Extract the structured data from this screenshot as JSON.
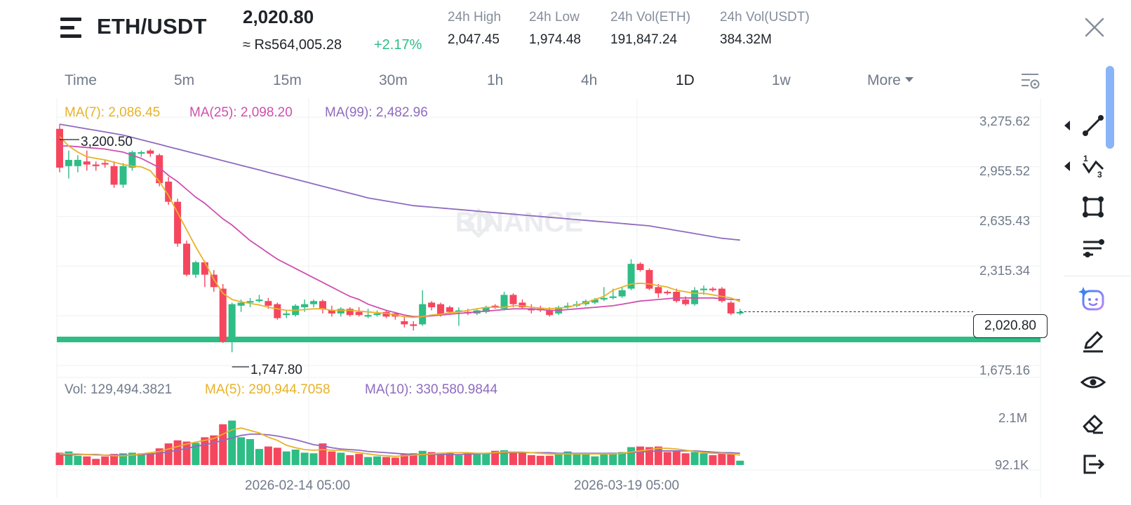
{
  "header": {
    "pair": "ETH/USDT",
    "price": "2,020.80",
    "fiat_price": "≈ Rs564,005.28",
    "change": "+2.17%",
    "stats": [
      {
        "label": "24h High",
        "value": "2,047.45"
      },
      {
        "label": "24h Low",
        "value": "1,974.48"
      },
      {
        "label": "24h Vol(ETH)",
        "value": "191,847.24"
      },
      {
        "label": "24h Vol(USDT)",
        "value": "384.32M"
      }
    ]
  },
  "intervals": [
    {
      "label": "Time",
      "active": false
    },
    {
      "label": "5m",
      "active": false
    },
    {
      "label": "15m",
      "active": false
    },
    {
      "label": "30m",
      "active": false
    },
    {
      "label": "1h",
      "active": false
    },
    {
      "label": "4h",
      "active": false
    },
    {
      "label": "1D",
      "active": true
    },
    {
      "label": "1w",
      "active": false
    },
    {
      "label": "More",
      "active": false
    }
  ],
  "ma_legend": {
    "ma7": "MA(7): 2,086.45",
    "ma25": "MA(25): 2,098.20",
    "ma99": "MA(99): 2,482.96"
  },
  "vol_legend": {
    "vol": "Vol: 129,494.3821",
    "ma5": "MA(5): 290,944.7058",
    "ma10": "MA(10): 330,580.9844"
  },
  "price_axis": [
    "3,275.62",
    "2,955.52",
    "2,635.43",
    "2,315.34",
    "1,675.16"
  ],
  "volume_axis": [
    "2.1M",
    "92.1K"
  ],
  "last_price": "2,020.80",
  "high_marker": "3,200.50",
  "low_marker": "1,747.80",
  "watermark": "BINANCE",
  "date_labels": [
    "2026-02-14 05:00",
    "2026-03-19 05:00"
  ],
  "colors": {
    "up": "#2ebd85",
    "down": "#f6465d",
    "ma7": "#e8b228",
    "ma25": "#d04fae",
    "ma99": "#8e6bbf",
    "text_muted": "#707a8a"
  },
  "tools": [
    "trend-line",
    "fib-retracement",
    "rectangle",
    "parallel-lines",
    "ai-assistant",
    "brush",
    "visibility",
    "eraser",
    "exit"
  ],
  "chart_data": {
    "type": "candlestick",
    "price_range": [
      1675.16,
      3275.62
    ],
    "volume_range": [
      92100,
      2100000
    ],
    "candles": [
      {
        "o": 3200,
        "h": 3230,
        "c": 2950,
        "l": 2920
      },
      {
        "o": 2960,
        "h": 3060,
        "c": 3000,
        "l": 2880
      },
      {
        "o": 2960,
        "h": 3030,
        "c": 3000,
        "l": 2920
      },
      {
        "o": 2990,
        "h": 3060,
        "c": 2970,
        "l": 2930
      },
      {
        "o": 2970,
        "h": 2990,
        "c": 2960,
        "l": 2930
      },
      {
        "o": 2980,
        "h": 3000,
        "c": 2970,
        "l": 2950
      },
      {
        "o": 2960,
        "h": 2990,
        "c": 2840,
        "l": 2820
      },
      {
        "o": 2840,
        "h": 2980,
        "c": 2960,
        "l": 2820
      },
      {
        "o": 2950,
        "h": 3060,
        "c": 3050,
        "l": 2930
      },
      {
        "o": 3040,
        "h": 3060,
        "c": 3050,
        "l": 3020
      },
      {
        "o": 3060,
        "h": 3070,
        "c": 3040,
        "l": 3020
      },
      {
        "o": 3030,
        "h": 3040,
        "c": 2850,
        "l": 2830
      },
      {
        "o": 2860,
        "h": 2890,
        "c": 2730,
        "l": 2710
      },
      {
        "o": 2730,
        "h": 2750,
        "c": 2460,
        "l": 2440
      },
      {
        "o": 2460,
        "h": 2480,
        "c": 2260,
        "l": 2250
      },
      {
        "o": 2260,
        "h": 2350,
        "c": 2340,
        "l": 2240
      },
      {
        "o": 2340,
        "h": 2350,
        "c": 2260,
        "l": 2180
      },
      {
        "o": 2260,
        "h": 2290,
        "c": 2180,
        "l": 2150
      },
      {
        "o": 2170,
        "h": 2200,
        "c": 1830,
        "l": 1820
      },
      {
        "o": 1830,
        "h": 2080,
        "c": 2070,
        "l": 1760
      },
      {
        "o": 2060,
        "h": 2100,
        "c": 2080,
        "l": 2020
      },
      {
        "o": 2080,
        "h": 2110,
        "c": 2090,
        "l": 2050
      },
      {
        "o": 2090,
        "h": 2130,
        "c": 2100,
        "l": 2080
      },
      {
        "o": 2090,
        "h": 2110,
        "c": 2060,
        "l": 2040
      },
      {
        "o": 2070,
        "h": 2080,
        "c": 1980,
        "l": 1970
      },
      {
        "o": 2000,
        "h": 2030,
        "c": 2010,
        "l": 1980
      },
      {
        "o": 2000,
        "h": 2070,
        "c": 2060,
        "l": 1990
      },
      {
        "o": 2050,
        "h": 2100,
        "c": 2070,
        "l": 2020
      },
      {
        "o": 2070,
        "h": 2100,
        "c": 2090,
        "l": 2050
      },
      {
        "o": 2090,
        "h": 2100,
        "c": 2040,
        "l": 2010
      },
      {
        "o": 2030,
        "h": 2060,
        "c": 2010,
        "l": 1990
      },
      {
        "o": 2010,
        "h": 2050,
        "c": 2040,
        "l": 1990
      },
      {
        "o": 2040,
        "h": 2050,
        "c": 2000,
        "l": 1990
      },
      {
        "o": 2020,
        "h": 2050,
        "c": 2000,
        "l": 1990
      },
      {
        "o": 1990,
        "h": 2040,
        "c": 2000,
        "l": 1980
      },
      {
        "o": 2000,
        "h": 2030,
        "c": 2010,
        "l": 1990
      },
      {
        "o": 2020,
        "h": 2030,
        "c": 1990,
        "l": 1980
      },
      {
        "o": 2010,
        "h": 2020,
        "c": 1990,
        "l": 1970
      },
      {
        "o": 1960,
        "h": 1990,
        "c": 1940,
        "l": 1920
      },
      {
        "o": 1940,
        "h": 1960,
        "c": 1930,
        "l": 1900
      },
      {
        "o": 1940,
        "h": 2160,
        "c": 2070,
        "l": 1930
      },
      {
        "o": 2080,
        "h": 2090,
        "c": 2050,
        "l": 2030
      },
      {
        "o": 2070,
        "h": 2080,
        "c": 2000,
        "l": 1990
      },
      {
        "o": 2050,
        "h": 2060,
        "c": 2020,
        "l": 2010
      },
      {
        "o": 2020,
        "h": 2050,
        "c": 2030,
        "l": 1930
      },
      {
        "o": 2020,
        "h": 2040,
        "c": 2010,
        "l": 2000
      },
      {
        "o": 2010,
        "h": 2040,
        "c": 2030,
        "l": 2000
      },
      {
        "o": 2020,
        "h": 2060,
        "c": 2050,
        "l": 2010
      },
      {
        "o": 2060,
        "h": 2070,
        "c": 2050,
        "l": 2040
      },
      {
        "o": 2040,
        "h": 2150,
        "c": 2130,
        "l": 2030
      },
      {
        "o": 2130,
        "h": 2140,
        "c": 2070,
        "l": 2050
      },
      {
        "o": 2080,
        "h": 2100,
        "c": 2050,
        "l": 2040
      },
      {
        "o": 2040,
        "h": 2070,
        "c": 2030,
        "l": 2010
      },
      {
        "o": 2040,
        "h": 2060,
        "c": 2030,
        "l": 2020
      },
      {
        "o": 2030,
        "h": 2050,
        "c": 2000,
        "l": 1990
      },
      {
        "o": 2010,
        "h": 2060,
        "c": 2050,
        "l": 2000
      },
      {
        "o": 2050,
        "h": 2080,
        "c": 2060,
        "l": 2040
      },
      {
        "o": 2060,
        "h": 2090,
        "c": 2070,
        "l": 2050
      },
      {
        "o": 2070,
        "h": 2100,
        "c": 2090,
        "l": 2060
      },
      {
        "o": 2080,
        "h": 2110,
        "c": 2100,
        "l": 2070
      },
      {
        "o": 2100,
        "h": 2180,
        "c": 2110,
        "l": 2090
      },
      {
        "o": 2110,
        "h": 2170,
        "c": 2120,
        "l": 2100
      },
      {
        "o": 2120,
        "h": 2180,
        "c": 2160,
        "l": 2110
      },
      {
        "o": 2170,
        "h": 2360,
        "c": 2330,
        "l": 2160
      },
      {
        "o": 2330,
        "h": 2340,
        "c": 2290,
        "l": 2280
      },
      {
        "o": 2290,
        "h": 2300,
        "c": 2170,
        "l": 2160
      },
      {
        "o": 2180,
        "h": 2200,
        "c": 2140,
        "l": 2110
      },
      {
        "o": 2150,
        "h": 2160,
        "c": 2140,
        "l": 2130
      },
      {
        "o": 2150,
        "h": 2170,
        "c": 2090,
        "l": 2080
      },
      {
        "o": 2100,
        "h": 2120,
        "c": 2070,
        "l": 2060
      },
      {
        "o": 2070,
        "h": 2180,
        "c": 2160,
        "l": 2060
      },
      {
        "o": 2160,
        "h": 2190,
        "c": 2170,
        "l": 2130
      },
      {
        "o": 2170,
        "h": 2180,
        "c": 2160,
        "l": 2150
      },
      {
        "o": 2170,
        "h": 2180,
        "c": 2090,
        "l": 2080
      },
      {
        "o": 2080,
        "h": 2090,
        "c": 2010,
        "l": 2000
      },
      {
        "o": 2010,
        "h": 2040,
        "c": 2020,
        "l": 2000
      }
    ],
    "volume": [
      0.2,
      0.22,
      0.15,
      0.14,
      0.1,
      0.14,
      0.18,
      0.19,
      0.2,
      0.19,
      0.18,
      0.27,
      0.35,
      0.4,
      0.38,
      0.36,
      0.45,
      0.48,
      0.66,
      0.72,
      0.45,
      0.42,
      0.26,
      0.3,
      0.28,
      0.22,
      0.25,
      0.2,
      0.19,
      0.35,
      0.22,
      0.2,
      0.16,
      0.18,
      0.13,
      0.14,
      0.13,
      0.12,
      0.17,
      0.19,
      0.23,
      0.21,
      0.2,
      0.2,
      0.16,
      0.19,
      0.2,
      0.2,
      0.23,
      0.24,
      0.22,
      0.2,
      0.16,
      0.15,
      0.15,
      0.18,
      0.22,
      0.19,
      0.17,
      0.14,
      0.18,
      0.2,
      0.21,
      0.29,
      0.3,
      0.29,
      0.3,
      0.21,
      0.22,
      0.19,
      0.21,
      0.19,
      0.16,
      0.2,
      0.18,
      0.07
    ],
    "ma7": [
      3150,
      3090,
      3050,
      3020,
      3010,
      3000,
      2985,
      2970,
      2960,
      2955,
      2930,
      2860,
      2770,
      2660,
      2550,
      2440,
      2340,
      2230,
      2140,
      2100,
      2085,
      2075,
      2065,
      2050,
      2040,
      2030,
      2030,
      2035,
      2040,
      2040,
      2030,
      2030,
      2030,
      2025,
      2020,
      2015,
      2010,
      2000,
      1990,
      1985,
      1990,
      2000,
      2005,
      2015,
      2020,
      2030,
      2040,
      2050,
      2050,
      2050,
      2060,
      2060,
      2050,
      2045,
      2040,
      2045,
      2050,
      2065,
      2080,
      2100,
      2120,
      2160,
      2180,
      2200,
      2205,
      2200,
      2190,
      2180,
      2160,
      2150,
      2140,
      2140,
      2130,
      2120,
      2110,
      2086.45
    ],
    "ma25": [
      3090,
      3090,
      3085,
      3080,
      3075,
      3070,
      3060,
      3050,
      3030,
      3010,
      2980,
      2950,
      2900,
      2860,
      2810,
      2760,
      2720,
      2670,
      2620,
      2580,
      2530,
      2480,
      2440,
      2400,
      2360,
      2330,
      2300,
      2270,
      2240,
      2210,
      2180,
      2150,
      2120,
      2100,
      2070,
      2050,
      2030,
      2015,
      2000,
      1990,
      1990,
      1995,
      2000,
      2005,
      2010,
      2015,
      2020,
      2025,
      2030,
      2035,
      2040,
      2040,
      2040,
      2035,
      2030,
      2030,
      2035,
      2040,
      2045,
      2050,
      2055,
      2060,
      2070,
      2080,
      2090,
      2095,
      2100,
      2105,
      2110,
      2110,
      2110,
      2110,
      2110,
      2105,
      2100,
      2098.2
    ],
    "ma99": [
      3230,
      3220,
      3210,
      3200,
      3190,
      3180,
      3170,
      3160,
      3145,
      3130,
      3115,
      3100,
      3085,
      3070,
      3055,
      3040,
      3025,
      3010,
      2995,
      2980,
      2965,
      2950,
      2935,
      2920,
      2905,
      2890,
      2875,
      2860,
      2845,
      2830,
      2815,
      2800,
      2785,
      2770,
      2755,
      2745,
      2735,
      2725,
      2715,
      2705,
      2700,
      2695,
      2690,
      2685,
      2680,
      2675,
      2670,
      2665,
      2660,
      2655,
      2650,
      2645,
      2640,
      2635,
      2630,
      2625,
      2620,
      2615,
      2610,
      2605,
      2600,
      2595,
      2590,
      2585,
      2580,
      2575,
      2565,
      2555,
      2545,
      2535,
      2525,
      2515,
      2505,
      2495,
      2489,
      2482.96
    ],
    "vol_ma5": [
      0.18,
      0.18,
      0.18,
      0.17,
      0.16,
      0.16,
      0.15,
      0.15,
      0.16,
      0.18,
      0.2,
      0.22,
      0.26,
      0.3,
      0.34,
      0.37,
      0.4,
      0.43,
      0.5,
      0.57,
      0.6,
      0.56,
      0.52,
      0.45,
      0.4,
      0.32,
      0.28,
      0.25,
      0.24,
      0.25,
      0.24,
      0.24,
      0.22,
      0.2,
      0.18,
      0.16,
      0.15,
      0.14,
      0.15,
      0.16,
      0.17,
      0.18,
      0.19,
      0.2,
      0.2,
      0.2,
      0.19,
      0.19,
      0.2,
      0.21,
      0.21,
      0.21,
      0.2,
      0.19,
      0.18,
      0.18,
      0.18,
      0.18,
      0.18,
      0.18,
      0.18,
      0.18,
      0.19,
      0.21,
      0.23,
      0.25,
      0.27,
      0.27,
      0.26,
      0.24,
      0.22,
      0.2,
      0.19,
      0.19,
      0.18,
      0.16
    ],
    "vol_ma10": [
      0.16,
      0.16,
      0.17,
      0.17,
      0.17,
      0.16,
      0.16,
      0.16,
      0.16,
      0.17,
      0.18,
      0.19,
      0.21,
      0.24,
      0.27,
      0.3,
      0.33,
      0.36,
      0.4,
      0.44,
      0.48,
      0.5,
      0.5,
      0.49,
      0.47,
      0.44,
      0.41,
      0.37,
      0.33,
      0.31,
      0.28,
      0.26,
      0.25,
      0.24,
      0.22,
      0.21,
      0.2,
      0.19,
      0.18,
      0.17,
      0.17,
      0.17,
      0.17,
      0.17,
      0.17,
      0.18,
      0.18,
      0.19,
      0.19,
      0.2,
      0.2,
      0.2,
      0.2,
      0.2,
      0.2,
      0.19,
      0.19,
      0.19,
      0.19,
      0.19,
      0.19,
      0.19,
      0.19,
      0.2,
      0.21,
      0.22,
      0.23,
      0.23,
      0.23,
      0.23,
      0.23,
      0.22,
      0.21,
      0.2,
      0.2,
      0.19
    ]
  }
}
